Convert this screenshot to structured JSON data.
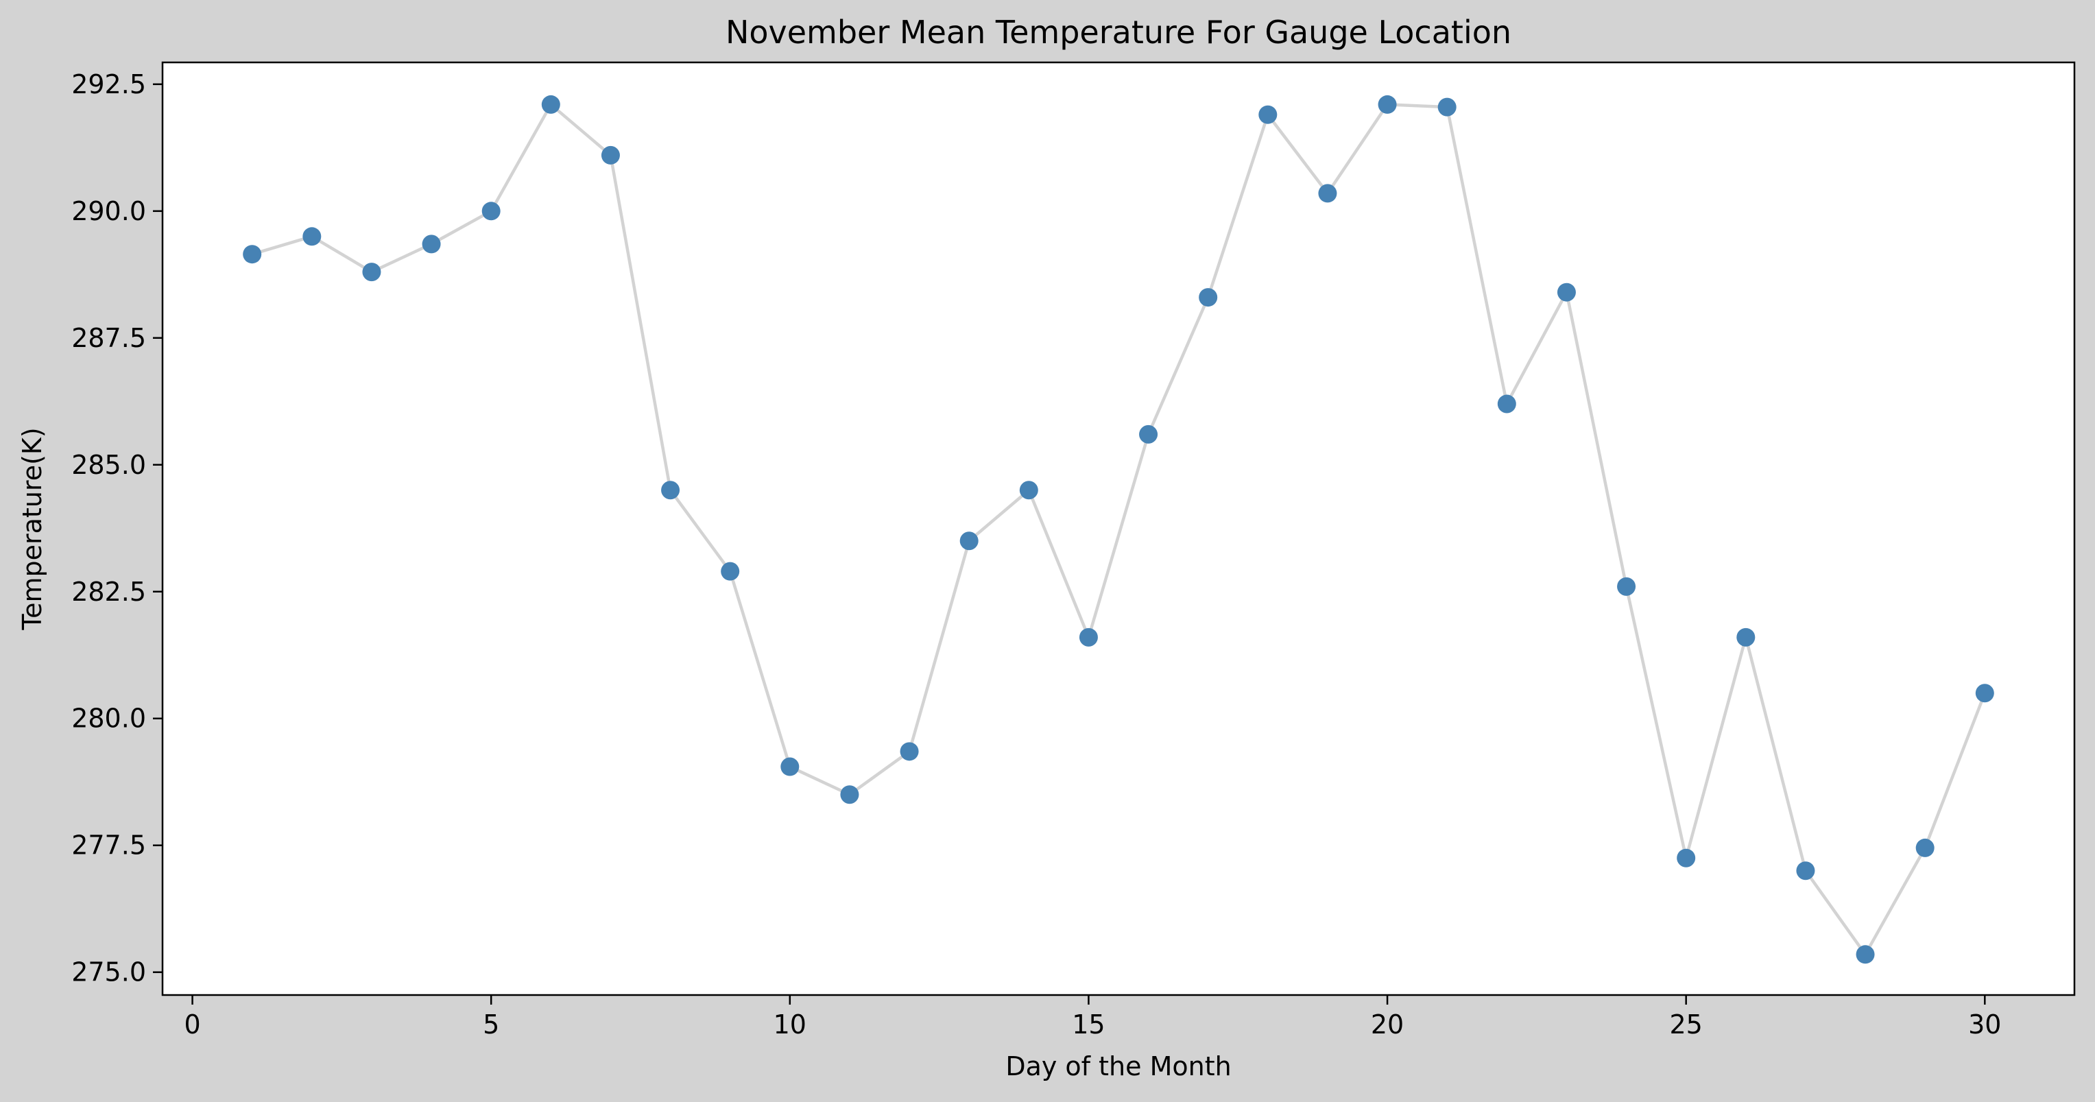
{
  "chart_data": {
    "type": "line",
    "title": "November Mean Temperature For Gauge Location",
    "xlabel": "Day of the Month",
    "ylabel": "Temperature(K)",
    "xlim": [
      -0.5,
      31.5
    ],
    "ylim": [
      274.55,
      292.93
    ],
    "xticks": [
      0,
      5,
      10,
      15,
      20,
      25,
      30
    ],
    "xtick_labels": [
      "0",
      "5",
      "10",
      "15",
      "20",
      "25",
      "30"
    ],
    "yticks": [
      275.0,
      277.5,
      280.0,
      282.5,
      285.0,
      287.5,
      290.0,
      292.5
    ],
    "ytick_labels": [
      "275.0",
      "277.5",
      "280.0",
      "282.5",
      "285.0",
      "287.5",
      "290.0",
      "292.5"
    ],
    "grid": false,
    "series": [
      {
        "x": [
          1,
          2,
          3,
          4,
          5,
          6,
          7,
          8,
          9,
          10,
          11,
          12,
          13,
          14,
          15,
          16,
          17,
          18,
          19,
          20,
          21,
          22,
          23,
          24,
          25,
          26,
          27,
          28,
          29,
          30
        ],
        "values": [
          289.15,
          289.5,
          288.8,
          289.35,
          290.0,
          292.1,
          291.1,
          284.5,
          282.9,
          279.05,
          278.5,
          279.35,
          283.5,
          284.5,
          281.6,
          285.6,
          288.3,
          291.9,
          290.35,
          292.1,
          292.05,
          286.2,
          288.4,
          282.6,
          277.25,
          281.6,
          277.0,
          275.35,
          277.45,
          280.5
        ],
        "line_color": "#d3d3d3",
        "marker_color": "#4682b4"
      }
    ]
  }
}
